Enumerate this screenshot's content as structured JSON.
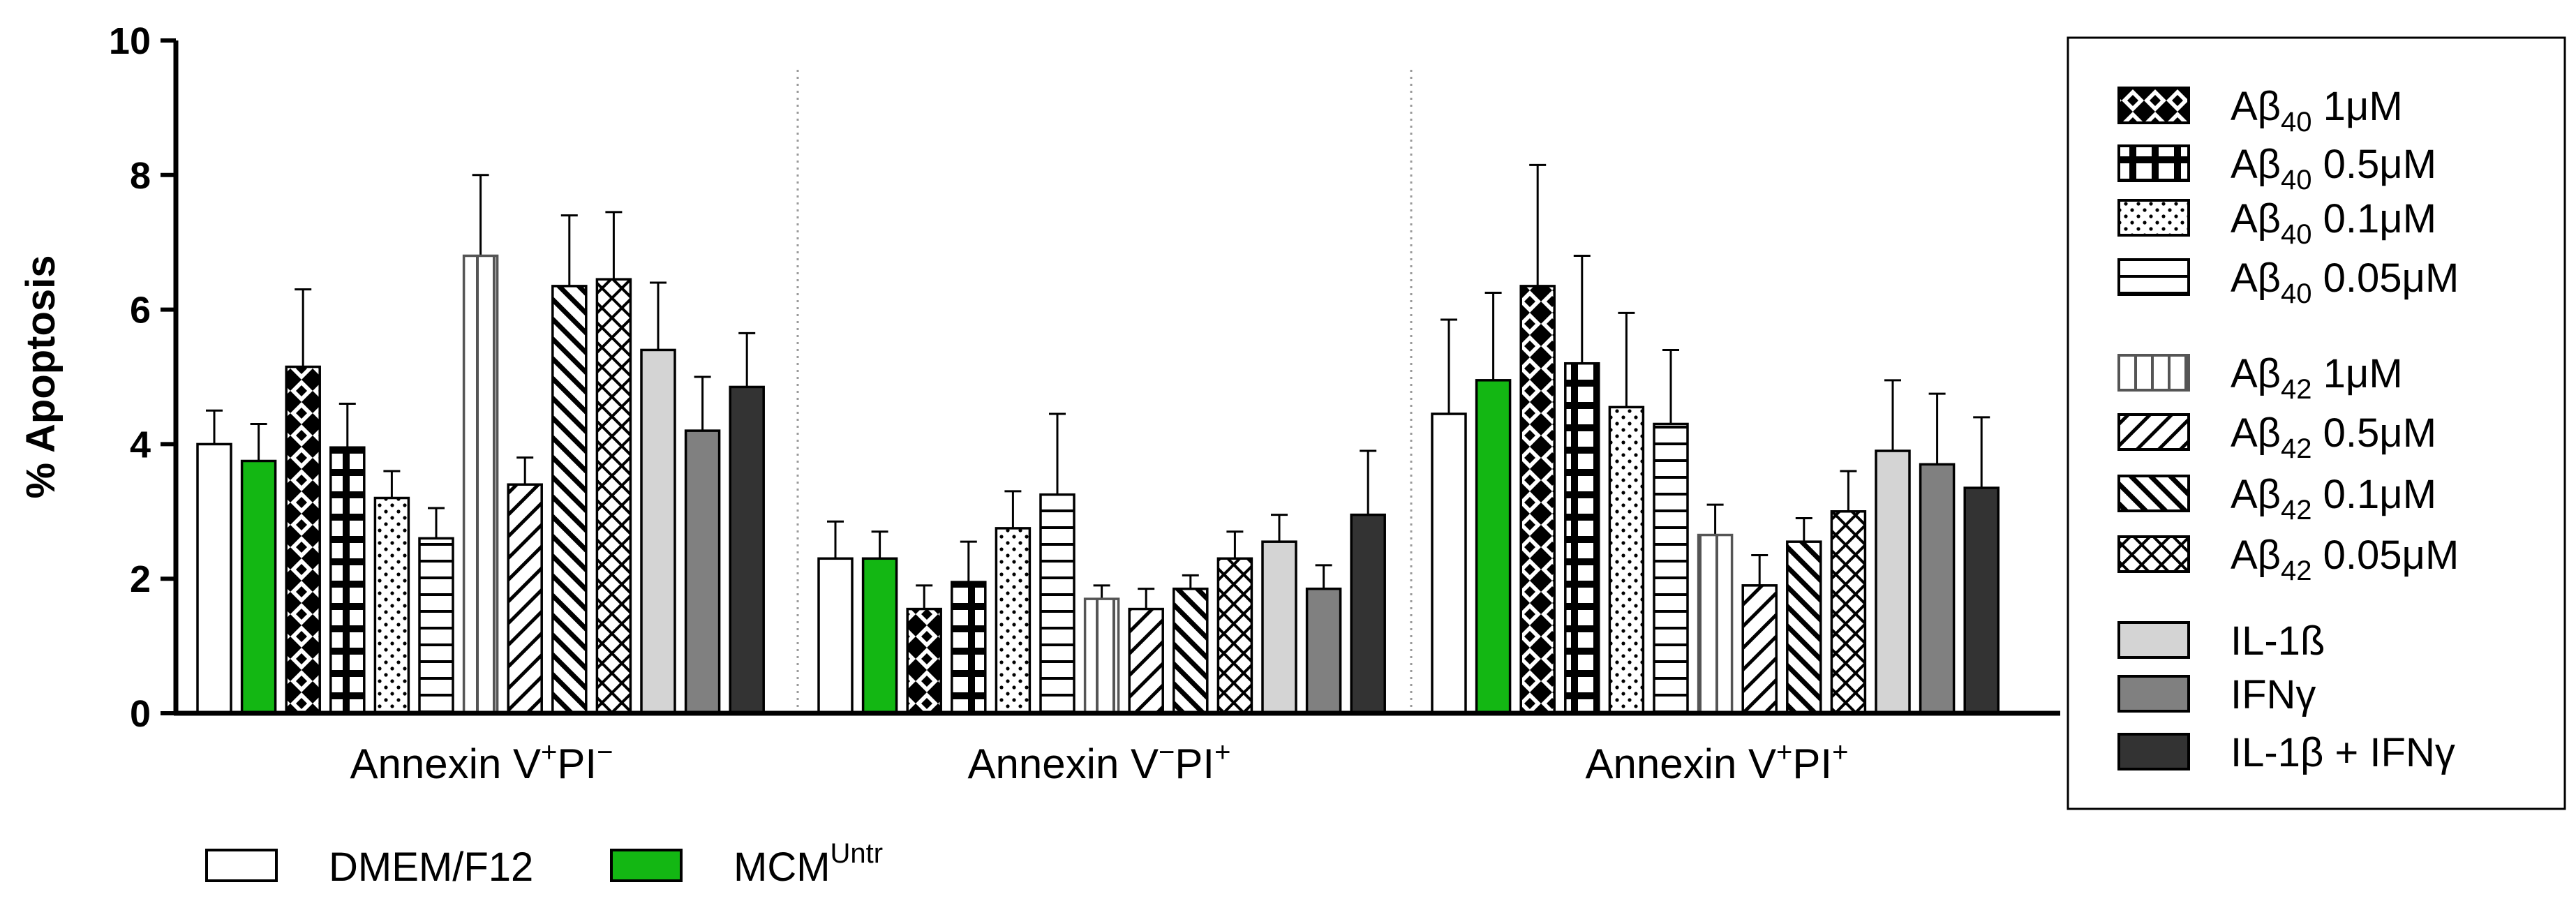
{
  "chart_data": {
    "type": "bar",
    "ylabel": "% Apoptosis",
    "ylim": [
      0,
      10
    ],
    "yticks": [
      "0",
      "2",
      "4",
      "6",
      "8",
      "10"
    ],
    "groups": [
      {
        "label_main": "Annexin V",
        "label_sup1": "+",
        "label_mid": "PI",
        "label_sup2": "−"
      },
      {
        "label_main": "Annexin V",
        "label_sup1": "−",
        "label_mid": "PI",
        "label_sup2": "+"
      },
      {
        "label_main": "Annexin V",
        "label_sup1": "+",
        "label_mid": "PI",
        "label_sup2": "+"
      }
    ],
    "series": [
      {
        "name": "DMEM/F12",
        "fill": "#ffffff",
        "pattern": "none",
        "values": [
          4.0,
          2.3,
          4.45
        ],
        "errors": [
          0.5,
          0.55,
          1.4
        ]
      },
      {
        "name": "MCM Untr",
        "fill": "#13b713",
        "pattern": "none",
        "values": [
          3.75,
          2.3,
          4.95
        ],
        "errors": [
          0.55,
          0.4,
          1.3
        ]
      },
      {
        "name": "Aβ40 1μM",
        "fill": "#000000",
        "pattern": "crosshatch",
        "values": [
          5.15,
          1.55,
          6.35
        ],
        "errors": [
          1.15,
          0.35,
          1.8
        ]
      },
      {
        "name": "Aβ40 0.5μM",
        "fill": "#000000",
        "pattern": "grid",
        "values": [
          3.95,
          1.95,
          5.2
        ],
        "errors": [
          0.65,
          0.6,
          1.6
        ]
      },
      {
        "name": "Aβ40 0.1μM",
        "fill": "#ffffff",
        "pattern": "dots",
        "values": [
          3.2,
          2.75,
          4.55
        ],
        "errors": [
          0.4,
          0.55,
          1.4
        ]
      },
      {
        "name": "Aβ40 0.05μM",
        "fill": "#ffffff",
        "pattern": "hlines",
        "values": [
          2.6,
          3.25,
          4.3
        ],
        "errors": [
          0.45,
          1.2,
          1.1
        ]
      },
      {
        "name": "Aβ42 1μM",
        "fill": "#ffffff",
        "pattern": "vlines",
        "values": [
          6.8,
          1.7,
          2.65
        ],
        "errors": [
          1.2,
          0.2,
          0.45
        ]
      },
      {
        "name": "Aβ42 0.5μM",
        "fill": "#ffffff",
        "pattern": "diag-fwd",
        "values": [
          3.4,
          1.55,
          1.9
        ],
        "errors": [
          0.4,
          0.3,
          0.45
        ]
      },
      {
        "name": "Aβ42 0.1μM",
        "fill": "#ffffff",
        "pattern": "diag-back",
        "values": [
          6.35,
          1.85,
          2.55
        ],
        "errors": [
          1.05,
          0.2,
          0.35
        ]
      },
      {
        "name": "Aβ42 0.05μM",
        "fill": "#ffffff",
        "pattern": "diag-cross",
        "values": [
          6.45,
          2.3,
          3.0
        ],
        "errors": [
          1.0,
          0.4,
          0.6
        ]
      },
      {
        "name": "IL-1ß",
        "fill": "#d4d4d4",
        "pattern": "none",
        "values": [
          5.4,
          2.55,
          3.9
        ],
        "errors": [
          1.0,
          0.4,
          1.05
        ]
      },
      {
        "name": "IFNγ",
        "fill": "#808080",
        "pattern": "none",
        "values": [
          4.2,
          1.85,
          3.7
        ],
        "errors": [
          0.8,
          0.35,
          1.05
        ]
      },
      {
        "name": "IL-1β + IFNγ",
        "fill": "#333333",
        "pattern": "none",
        "values": [
          4.85,
          2.95,
          3.35
        ],
        "errors": [
          0.8,
          0.95,
          1.05
        ]
      }
    ]
  },
  "legend": {
    "bottom": [
      {
        "text": "DMEM/F12",
        "sup": ""
      },
      {
        "text": "MCM",
        "sup": "Untr"
      }
    ],
    "box": [
      {
        "base": "Aβ",
        "sub": "40",
        "tail": " 1μM"
      },
      {
        "base": "Aβ",
        "sub": "40",
        "tail": " 0.5μM"
      },
      {
        "base": "Aβ",
        "sub": "40",
        "tail": " 0.1μM"
      },
      {
        "base": "Aβ",
        "sub": "40",
        "tail": " 0.05μM"
      },
      {
        "base": "Aβ",
        "sub": "42",
        "tail": " 1μM"
      },
      {
        "base": "Aβ",
        "sub": "42",
        "tail": " 0.5μM"
      },
      {
        "base": "Aβ",
        "sub": "42",
        "tail": " 0.1μM"
      },
      {
        "base": "Aβ",
        "sub": "42",
        "tail": " 0.05μM"
      },
      {
        "base": "IL-1ß",
        "sub": "",
        "tail": ""
      },
      {
        "base": "IFNγ",
        "sub": "",
        "tail": ""
      },
      {
        "base": "IL-1β + IFNγ",
        "sub": "",
        "tail": ""
      }
    ]
  }
}
